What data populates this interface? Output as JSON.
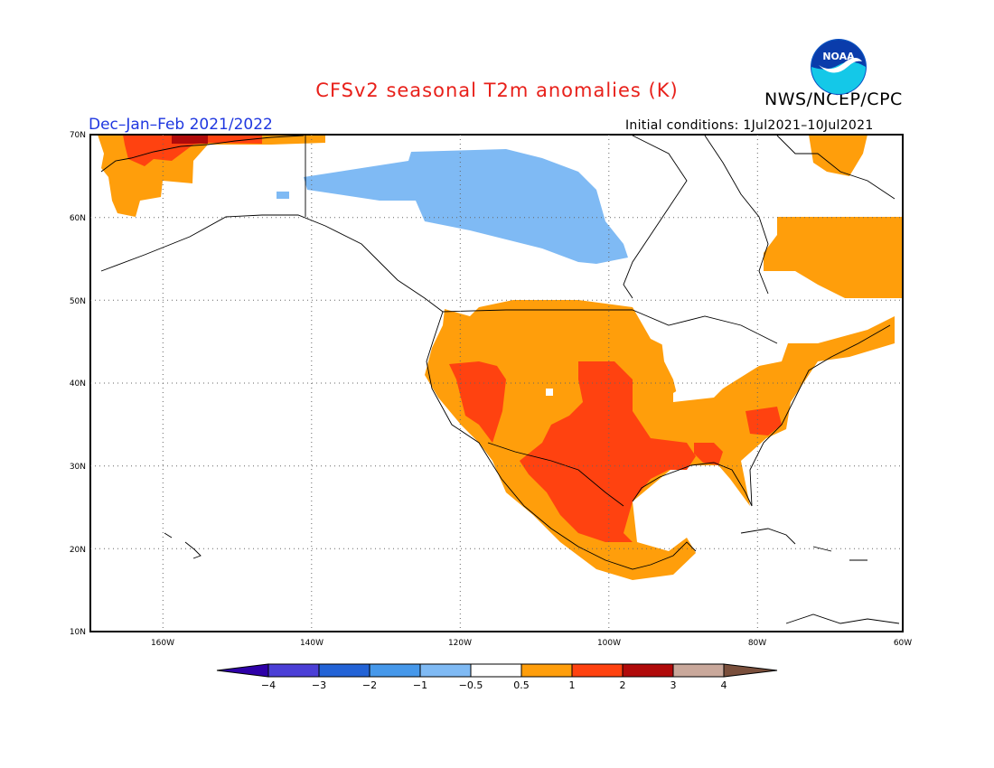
{
  "title": "CFSv2 seasonal T2m anomalies (K)",
  "season": "Dec–Jan–Feb 2021/2022",
  "initial_conditions": "Initial conditions:  1Jul2021–10Jul2021",
  "agency": "NWS/NCEP/CPC",
  "logo_text": "NOAA",
  "map": {
    "lon_range": [
      -172,
      -60
    ],
    "lat_range": [
      10,
      70
    ],
    "lat_labels": [
      "70N",
      "60N",
      "50N",
      "40N",
      "30N",
      "20N",
      "10N"
    ],
    "lon_labels": [
      "160W",
      "140W",
      "120W",
      "100W",
      "80W",
      "60W"
    ]
  },
  "colorbar": {
    "labels": [
      "−4",
      "−3",
      "−2",
      "−1",
      "−0.5",
      "0.5",
      "1",
      "2",
      "3",
      "4"
    ],
    "colors": [
      "#2e00a8",
      "#4b3fd6",
      "#2363d6",
      "#4698ea",
      "#7fbaf4",
      "#ffffff",
      "#ff9e0b",
      "#ff4210",
      "#b00a0a",
      "#c9a89b",
      "#7a4f3c"
    ]
  },
  "colors": {
    "cool": "#7fbaf4",
    "warm": "#ff9e0b",
    "hot": "#ff4210",
    "very_hot": "#b00a0a"
  }
}
